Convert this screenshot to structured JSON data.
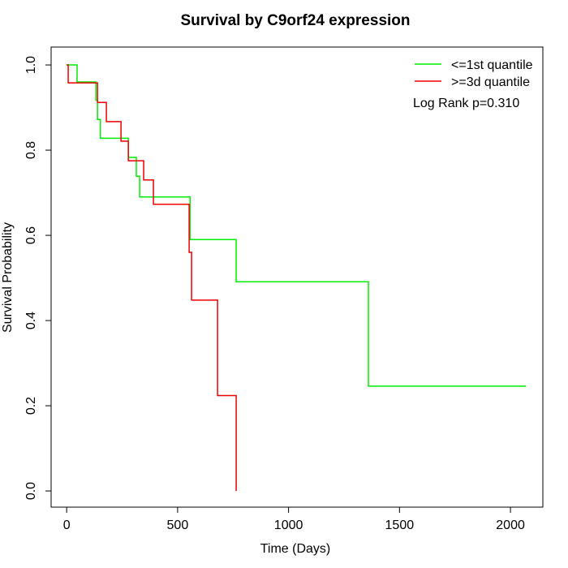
{
  "chart_data": {
    "type": "step",
    "title": "Survival by C9orf24 expression",
    "x_label": "Time (Days)",
    "y_label": "Survival Probability",
    "annotation": "Log Rank p=0.310",
    "xlim": [
      -70,
      2146
    ],
    "ylim": [
      -0.038,
      1.042
    ],
    "xticks": [
      0,
      500,
      1000,
      1500,
      2000
    ],
    "yticks": [
      {
        "value": 0,
        "label": "0.0"
      },
      {
        "value": 0.2,
        "label": "0.2"
      },
      {
        "value": 0.4,
        "label": "0.4"
      },
      {
        "value": 0.6,
        "label": "0.6"
      },
      {
        "value": 0.8,
        "label": "0.8"
      },
      {
        "value": 1,
        "label": "1.0"
      }
    ],
    "legend": "top-right",
    "series": [
      {
        "name": "<=1st quantile",
        "color": "#00ee00",
        "x": [
          0,
          47,
          132,
          139,
          152,
          278,
          314,
          329,
          556,
          764,
          1360,
          2070
        ],
        "values": [
          1,
          0.96,
          0.917,
          0.872,
          0.828,
          0.783,
          0.739,
          0.69,
          0.59,
          0.491,
          0.246,
          0.246
        ]
      },
      {
        "name": ">=3d quantile",
        "color": "#ee0000",
        "x": [
          0,
          7,
          139,
          179,
          245,
          278,
          347,
          391,
          552,
          563,
          680,
          764
        ],
        "values": [
          1,
          0.958,
          0.912,
          0.867,
          0.821,
          0.775,
          0.73,
          0.673,
          0.56,
          0.448,
          0.224,
          0
        ]
      }
    ]
  }
}
